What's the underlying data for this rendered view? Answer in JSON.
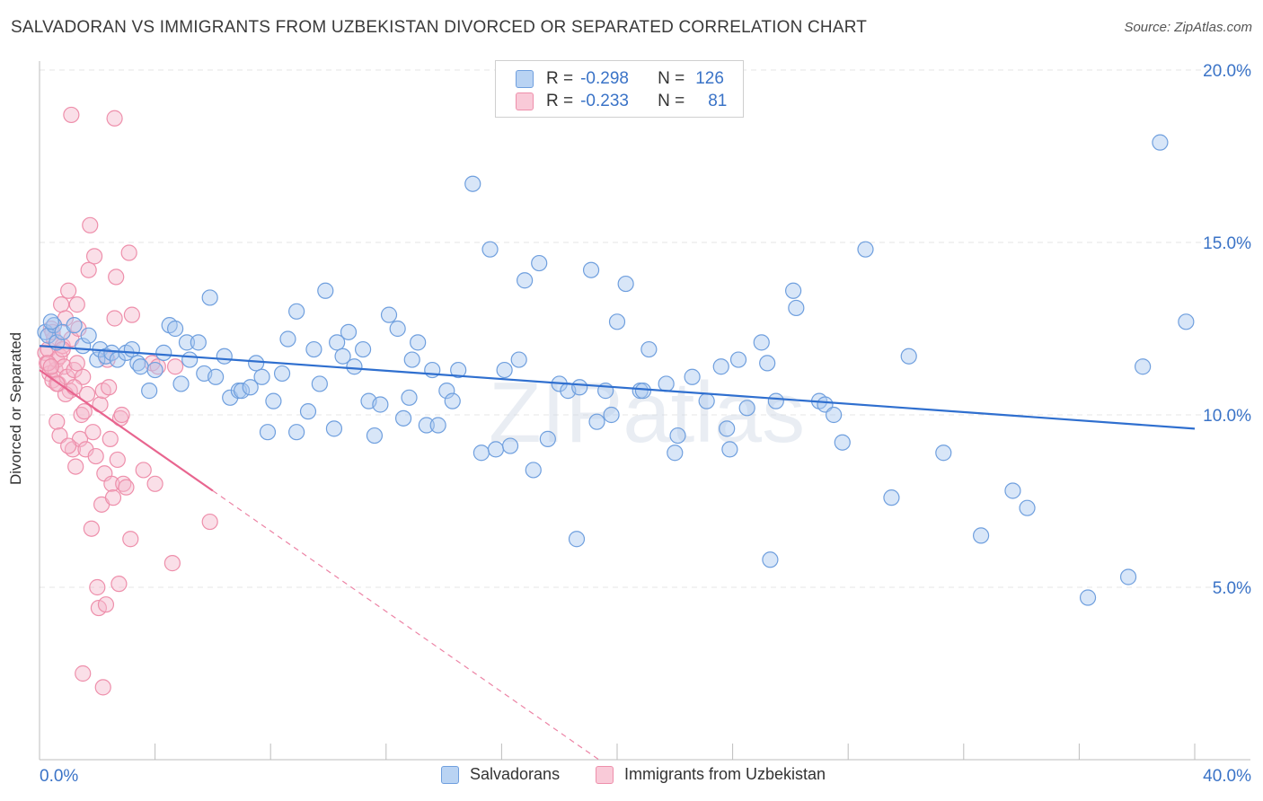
{
  "title": "SALVADORAN VS IMMIGRANTS FROM UZBEKISTAN DIVORCED OR SEPARATED CORRELATION CHART",
  "source": "Source: ZipAtlas.com",
  "watermark": "ZIPatlas",
  "legend": {
    "rows": [
      {
        "r_label": "R =",
        "r_value": "-0.298",
        "n_label": "N =",
        "n_value": "126",
        "color": "#a9c8f0"
      },
      {
        "r_label": "R =",
        "r_value": "-0.233",
        "n_label": "N =",
        "n_value": "81",
        "color": "#f5b8cb"
      }
    ]
  },
  "colors": {
    "blue_fill": "#a9c8f0",
    "blue_stroke": "#6f9fde",
    "blue_line": "#2f6fcf",
    "pink_fill": "#f5b8cb",
    "pink_stroke": "#ee8fab",
    "pink_line": "#e8658f",
    "tick_label": "#3a73c7",
    "grid": "#e4e4e4"
  },
  "chart_data": {
    "type": "scatter",
    "ylabel": "Divorced or Separated",
    "xlim": [
      0,
      40
    ],
    "ylim": [
      0,
      20
    ],
    "x_tick_labels": [
      "0.0%",
      "40.0%"
    ],
    "y_ticks": [
      5,
      10,
      15,
      20
    ],
    "y_tick_labels": [
      "5.0%",
      "10.0%",
      "15.0%",
      "20.0%"
    ],
    "grid": "horizontal dashed",
    "series": [
      {
        "name": "Salvadorans",
        "trend": {
          "x": [
            0,
            40
          ],
          "y": [
            12.0,
            9.6
          ]
        },
        "points": [
          [
            0.2,
            12.4
          ],
          [
            0.3,
            12.3
          ],
          [
            0.5,
            12.6
          ],
          [
            0.6,
            12.1
          ],
          [
            0.8,
            12.4
          ],
          [
            1.2,
            12.6
          ],
          [
            1.5,
            12.0
          ],
          [
            1.7,
            12.3
          ],
          [
            2.0,
            11.6
          ],
          [
            2.1,
            11.9
          ],
          [
            2.3,
            11.7
          ],
          [
            2.5,
            11.8
          ],
          [
            2.7,
            11.6
          ],
          [
            3.0,
            11.8
          ],
          [
            3.2,
            11.9
          ],
          [
            3.4,
            11.5
          ],
          [
            3.5,
            11.4
          ],
          [
            3.8,
            10.7
          ],
          [
            4.0,
            11.3
          ],
          [
            4.3,
            11.8
          ],
          [
            4.5,
            12.6
          ],
          [
            4.7,
            12.5
          ],
          [
            4.9,
            10.9
          ],
          [
            5.1,
            12.1
          ],
          [
            5.2,
            11.6
          ],
          [
            5.5,
            12.1
          ],
          [
            5.7,
            11.2
          ],
          [
            5.9,
            13.4
          ],
          [
            6.1,
            11.1
          ],
          [
            6.4,
            11.7
          ],
          [
            6.6,
            10.5
          ],
          [
            6.9,
            10.7
          ],
          [
            7.0,
            10.7
          ],
          [
            7.3,
            10.8
          ],
          [
            7.5,
            11.5
          ],
          [
            7.7,
            11.1
          ],
          [
            7.9,
            9.5
          ],
          [
            8.1,
            10.4
          ],
          [
            8.4,
            11.2
          ],
          [
            8.6,
            12.2
          ],
          [
            8.9,
            13.0
          ],
          [
            8.9,
            9.5
          ],
          [
            9.3,
            10.1
          ],
          [
            9.5,
            11.9
          ],
          [
            9.7,
            10.9
          ],
          [
            9.9,
            13.6
          ],
          [
            10.2,
            9.6
          ],
          [
            10.3,
            12.1
          ],
          [
            10.5,
            11.7
          ],
          [
            10.7,
            12.4
          ],
          [
            10.9,
            11.4
          ],
          [
            11.2,
            11.9
          ],
          [
            11.4,
            10.4
          ],
          [
            11.6,
            9.4
          ],
          [
            11.8,
            10.3
          ],
          [
            12.1,
            12.9
          ],
          [
            12.4,
            12.5
          ],
          [
            12.6,
            9.9
          ],
          [
            12.8,
            10.5
          ],
          [
            12.9,
            11.6
          ],
          [
            13.1,
            12.1
          ],
          [
            13.4,
            9.7
          ],
          [
            13.6,
            11.3
          ],
          [
            13.8,
            9.7
          ],
          [
            14.1,
            10.7
          ],
          [
            14.3,
            10.4
          ],
          [
            14.5,
            11.3
          ],
          [
            15.0,
            16.7
          ],
          [
            15.3,
            8.9
          ],
          [
            15.6,
            14.8
          ],
          [
            15.8,
            9.0
          ],
          [
            16.1,
            11.3
          ],
          [
            16.3,
            9.1
          ],
          [
            16.6,
            11.6
          ],
          [
            16.8,
            13.9
          ],
          [
            17.1,
            8.4
          ],
          [
            17.3,
            14.4
          ],
          [
            17.6,
            9.3
          ],
          [
            18.0,
            10.9
          ],
          [
            18.3,
            10.7
          ],
          [
            18.6,
            6.4
          ],
          [
            18.7,
            10.8
          ],
          [
            19.1,
            14.2
          ],
          [
            19.3,
            9.8
          ],
          [
            19.6,
            10.7
          ],
          [
            19.8,
            10.0
          ],
          [
            20.0,
            12.7
          ],
          [
            20.3,
            13.8
          ],
          [
            20.8,
            10.7
          ],
          [
            20.9,
            10.7
          ],
          [
            21.1,
            11.9
          ],
          [
            21.7,
            10.9
          ],
          [
            22.1,
            9.4
          ],
          [
            22.0,
            8.9
          ],
          [
            22.6,
            11.1
          ],
          [
            23.1,
            10.4
          ],
          [
            23.6,
            11.4
          ],
          [
            23.8,
            9.6
          ],
          [
            23.9,
            9.0
          ],
          [
            24.2,
            11.6
          ],
          [
            24.5,
            10.2
          ],
          [
            25.0,
            12.1
          ],
          [
            25.2,
            11.5
          ],
          [
            25.3,
            5.8
          ],
          [
            25.5,
            10.4
          ],
          [
            26.1,
            13.6
          ],
          [
            26.2,
            13.1
          ],
          [
            27.0,
            10.4
          ],
          [
            27.2,
            10.3
          ],
          [
            27.5,
            10.0
          ],
          [
            27.8,
            9.2
          ],
          [
            28.6,
            14.8
          ],
          [
            29.5,
            7.6
          ],
          [
            30.1,
            11.7
          ],
          [
            31.3,
            8.9
          ],
          [
            32.6,
            6.5
          ],
          [
            33.7,
            7.8
          ],
          [
            34.2,
            7.3
          ],
          [
            36.3,
            4.7
          ],
          [
            37.7,
            5.3
          ],
          [
            38.2,
            11.4
          ],
          [
            38.8,
            17.9
          ],
          [
            39.7,
            12.7
          ],
          [
            0.4,
            12.7
          ]
        ]
      },
      {
        "name": "Immigrants from Uzbekistan",
        "trend": {
          "x": [
            0,
            6.0
          ],
          "y": [
            11.3,
            7.8
          ]
        },
        "points": [
          [
            0.2,
            11.8
          ],
          [
            0.25,
            11.5
          ],
          [
            0.3,
            11.9
          ],
          [
            0.35,
            11.2
          ],
          [
            0.4,
            12.5
          ],
          [
            0.45,
            11.0
          ],
          [
            0.5,
            12.2
          ],
          [
            0.55,
            11.3
          ],
          [
            0.6,
            11.6
          ],
          [
            0.65,
            10.9
          ],
          [
            0.7,
            11.7
          ],
          [
            0.75,
            13.2
          ],
          [
            0.8,
            12.0
          ],
          [
            0.85,
            11.4
          ],
          [
            0.9,
            12.8
          ],
          [
            0.95,
            11.1
          ],
          [
            1.0,
            13.6
          ],
          [
            1.05,
            10.7
          ],
          [
            1.1,
            12.2
          ],
          [
            1.15,
            9.0
          ],
          [
            1.2,
            11.3
          ],
          [
            1.25,
            8.5
          ],
          [
            1.3,
            13.2
          ],
          [
            1.35,
            12.5
          ],
          [
            1.4,
            9.3
          ],
          [
            1.45,
            10.0
          ],
          [
            1.5,
            11.1
          ],
          [
            1.55,
            10.1
          ],
          [
            1.6,
            9.0
          ],
          [
            1.65,
            10.6
          ],
          [
            1.7,
            14.2
          ],
          [
            1.75,
            15.5
          ],
          [
            1.8,
            6.7
          ],
          [
            1.85,
            9.5
          ],
          [
            1.9,
            14.6
          ],
          [
            1.95,
            8.8
          ],
          [
            2.0,
            5.0
          ],
          [
            2.05,
            4.4
          ],
          [
            2.1,
            10.3
          ],
          [
            2.15,
            7.4
          ],
          [
            2.2,
            10.7
          ],
          [
            2.25,
            8.3
          ],
          [
            2.3,
            4.5
          ],
          [
            2.35,
            11.6
          ],
          [
            2.4,
            10.8
          ],
          [
            2.45,
            9.3
          ],
          [
            2.5,
            8.0
          ],
          [
            2.55,
            7.6
          ],
          [
            2.6,
            12.8
          ],
          [
            2.65,
            14.0
          ],
          [
            2.7,
            8.7
          ],
          [
            2.75,
            5.1
          ],
          [
            2.8,
            9.9
          ],
          [
            2.85,
            10.0
          ],
          [
            2.9,
            8.0
          ],
          [
            3.0,
            7.9
          ],
          [
            3.1,
            14.7
          ],
          [
            3.15,
            6.4
          ],
          [
            3.2,
            12.9
          ],
          [
            3.6,
            8.4
          ],
          [
            3.9,
            11.5
          ],
          [
            4.0,
            8.0
          ],
          [
            4.1,
            11.4
          ],
          [
            4.6,
            5.7
          ],
          [
            4.7,
            11.4
          ],
          [
            5.9,
            6.9
          ],
          [
            1.1,
            18.7
          ],
          [
            2.6,
            18.6
          ],
          [
            0.6,
            9.8
          ],
          [
            0.7,
            9.4
          ],
          [
            0.3,
            11.5
          ],
          [
            0.45,
            12.4
          ],
          [
            0.9,
            10.6
          ],
          [
            1.3,
            11.5
          ],
          [
            1.0,
            9.1
          ],
          [
            0.6,
            10.9
          ],
          [
            0.8,
            11.9
          ],
          [
            1.5,
            2.5
          ],
          [
            2.2,
            2.1
          ],
          [
            1.2,
            10.8
          ],
          [
            0.4,
            11.4
          ]
        ]
      }
    ]
  },
  "bottom_legend": [
    {
      "label": "Salvadorans"
    },
    {
      "label": "Immigrants from Uzbekistan"
    }
  ]
}
